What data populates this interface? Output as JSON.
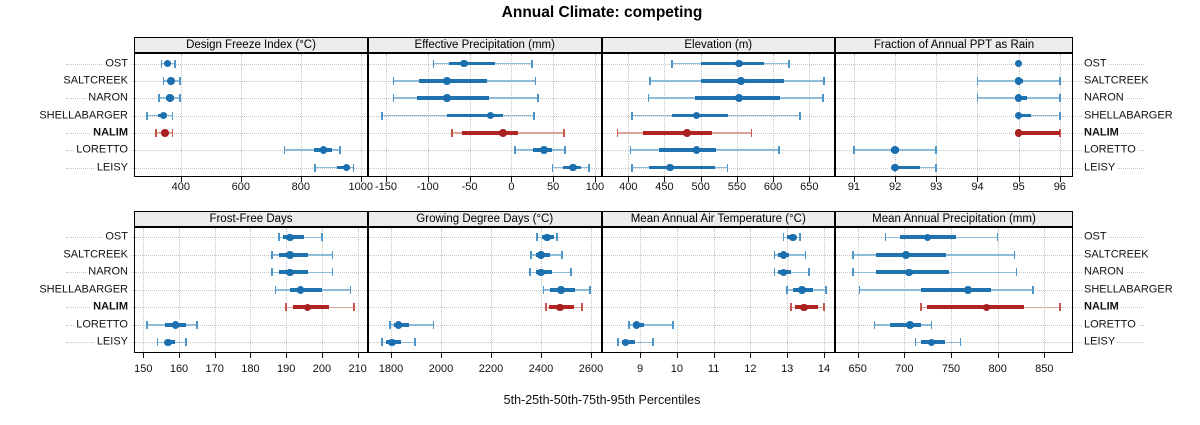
{
  "title": "Annual Climate: competing",
  "caption": "5th-25th-50th-75th-95th Percentiles",
  "sites": [
    "OST",
    "SALTCREEK",
    "NARON",
    "SHELLABARGER",
    "NALIM",
    "LORETTO",
    "LEISY"
  ],
  "highlight_site": "NALIM",
  "colors": {
    "blue_dot": "#1b6fae",
    "blue_band": "#1f74b0",
    "blue_whisker": "#8fbcdb",
    "blue_cap": "#4f96c8",
    "red_dot": "#a92020",
    "red_band": "#b22422",
    "red_whisker": "#dba49d",
    "red_cap": "#c4564e",
    "strip_bg": "#ececec",
    "grid": "#c3c3c3"
  },
  "chart_data": {
    "type": "dotplot-percentiles",
    "percentile_labels": [
      "5th",
      "25th",
      "50th",
      "75th",
      "95th"
    ],
    "layout": {
      "rows": 2,
      "cols": 4,
      "grid": "dotted",
      "site_labels": "left and right"
    },
    "panels": [
      {
        "title": "Design Freeze Index (°C)",
        "row": 0,
        "col": 0,
        "ticks": [
          400,
          600,
          800,
          1000
        ],
        "xlim": [
          244,
          1024
        ],
        "values": [
          [
            335,
            348,
            356,
            366,
            381
          ],
          [
            342,
            358,
            368,
            378,
            398
          ],
          [
            328,
            350,
            364,
            378,
            398
          ],
          [
            287,
            325,
            342,
            355,
            373
          ],
          [
            318,
            338,
            348,
            358,
            373
          ],
          [
            745,
            845,
            875,
            905,
            930
          ],
          [
            848,
            920,
            953,
            965,
            975
          ]
        ]
      },
      {
        "title": "Effective Precipitation (mm)",
        "row": 0,
        "col": 1,
        "ticks": [
          -150,
          -100,
          -50,
          0,
          50,
          100
        ],
        "xlim": [
          -171.5,
          107.8
        ],
        "values": [
          [
            -93,
            -75,
            -57,
            -20,
            25
          ],
          [
            -141,
            -111,
            -77,
            -29,
            29
          ],
          [
            -141,
            -113,
            -77,
            -27,
            32
          ],
          [
            -155,
            -77,
            -25,
            -10,
            27
          ],
          [
            -71,
            -59,
            -10,
            8,
            63
          ],
          [
            4,
            26,
            39,
            48,
            64
          ],
          [
            49,
            62,
            74,
            83,
            93
          ]
        ]
      },
      {
        "title": "Elevation (m)",
        "row": 0,
        "col": 2,
        "ticks": [
          400,
          450,
          500,
          550,
          600,
          650
        ],
        "xlim": [
          363,
          685.5
        ],
        "values": [
          [
            460,
            500,
            553,
            588,
            622
          ],
          [
            430,
            500,
            556,
            615,
            670
          ],
          [
            428,
            492,
            553,
            610,
            669
          ],
          [
            405,
            460,
            494,
            538,
            637
          ],
          [
            385,
            420,
            481,
            515,
            570
          ],
          [
            403,
            442,
            494,
            521,
            608
          ],
          [
            405,
            428,
            458,
            520,
            537
          ]
        ]
      },
      {
        "title": "Fraction of Annual PPT as Rain",
        "row": 0,
        "col": 3,
        "ticks": [
          91,
          92,
          93,
          94,
          95,
          96
        ],
        "xlim": [
          90.54,
          96.32
        ],
        "values": [
          [
            95,
            95,
            95,
            95,
            95
          ],
          [
            94,
            94.9,
            95,
            95.1,
            96
          ],
          [
            94,
            94.9,
            95,
            95.2,
            96
          ],
          [
            95,
            95,
            95,
            95.3,
            96
          ],
          [
            95,
            95,
            95,
            96,
            96
          ],
          [
            91,
            91.9,
            92,
            92.1,
            93
          ],
          [
            92,
            92,
            92,
            92.6,
            93
          ]
        ]
      },
      {
        "title": "Frost-Free Days",
        "row": 1,
        "col": 0,
        "ticks": [
          150,
          160,
          170,
          180,
          190,
          200,
          210
        ],
        "xlim": [
          147.4,
          212.9
        ],
        "values": [
          [
            188,
            189,
            191,
            195,
            200
          ],
          [
            186,
            188,
            191,
            196,
            203
          ],
          [
            186,
            188,
            191,
            196,
            203
          ],
          [
            187,
            191,
            194,
            200,
            208
          ],
          [
            190,
            192,
            196,
            202,
            209
          ],
          [
            151,
            156,
            159,
            162,
            165
          ],
          [
            154,
            156,
            157,
            159,
            162
          ]
        ]
      },
      {
        "title": "Growing Degree Days (°C)",
        "row": 1,
        "col": 1,
        "ticks": [
          1800,
          2000,
          2200,
          2400,
          2600
        ],
        "xlim": [
          1708,
          2642
        ],
        "values": [
          [
            2385,
            2405,
            2425,
            2450,
            2465
          ],
          [
            2360,
            2380,
            2400,
            2435,
            2485
          ],
          [
            2355,
            2380,
            2400,
            2445,
            2520
          ],
          [
            2410,
            2435,
            2480,
            2535,
            2595
          ],
          [
            2420,
            2430,
            2475,
            2530,
            2565
          ],
          [
            1795,
            1810,
            1830,
            1870,
            1970
          ],
          [
            1765,
            1780,
            1805,
            1840,
            1895
          ]
        ]
      },
      {
        "title": "Mean Annual Air Temperature (°C)",
        "row": 1,
        "col": 2,
        "ticks": [
          9,
          10,
          11,
          12,
          13,
          14
        ],
        "xlim": [
          7.95,
          14.3
        ],
        "values": [
          [
            12.9,
            13.0,
            13.15,
            13.25,
            13.35
          ],
          [
            12.65,
            12.75,
            12.9,
            13.05,
            13.5
          ],
          [
            12.65,
            12.75,
            12.9,
            13.1,
            13.6
          ],
          [
            13.0,
            13.15,
            13.4,
            13.7,
            14.05
          ],
          [
            13.1,
            13.2,
            13.45,
            13.85,
            14.0
          ],
          [
            8.7,
            8.8,
            8.9,
            9.1,
            9.9
          ],
          [
            8.4,
            8.5,
            8.6,
            8.85,
            9.35
          ]
        ]
      },
      {
        "title": "Mean Annual Precipitation (mm)",
        "row": 1,
        "col": 3,
        "ticks": [
          650,
          700,
          750,
          800,
          850
        ],
        "xlim": [
          625.7,
          880.7
        ],
        "values": [
          [
            680,
            695,
            725,
            755,
            800
          ],
          [
            645,
            670,
            702,
            745,
            818
          ],
          [
            645,
            670,
            705,
            748,
            820
          ],
          [
            652,
            718,
            768,
            793,
            838
          ],
          [
            718,
            724,
            788,
            828,
            867
          ],
          [
            668,
            685,
            706,
            718,
            729
          ],
          [
            712,
            718,
            729,
            744,
            760
          ]
        ]
      }
    ]
  }
}
